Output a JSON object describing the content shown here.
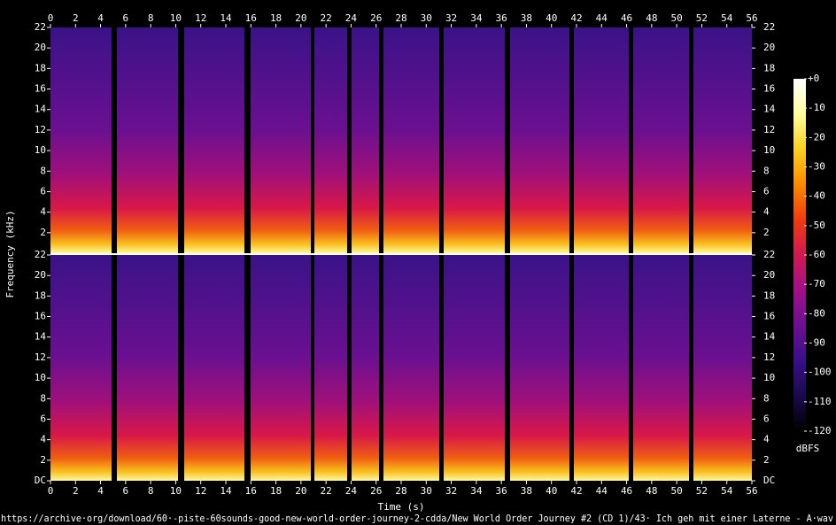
{
  "chart_data": {
    "type": "spectrogram",
    "x_label": "Time (s)",
    "y_label": "Frequency (kHz)",
    "xlim": [
      0,
      56
    ],
    "xticks": [
      0,
      2,
      4,
      6,
      8,
      10,
      12,
      14,
      16,
      18,
      20,
      22,
      24,
      26,
      28,
      30,
      32,
      34,
      36,
      38,
      40,
      42,
      44,
      46,
      48,
      50,
      52,
      54,
      56
    ],
    "channels": [
      {
        "ylim": [
          0,
          22
        ],
        "yticks": [
          2,
          4,
          6,
          8,
          10,
          12,
          14,
          16,
          18,
          20,
          22
        ]
      },
      {
        "ylim": [
          0,
          22
        ],
        "yticks": [
          {
            "value": 0,
            "label": "DC"
          },
          2,
          4,
          6,
          8,
          10,
          12,
          14,
          16,
          18,
          20,
          22
        ]
      }
    ],
    "colorbar": {
      "label": "dBFS",
      "lim": [
        -120,
        0
      ],
      "ticks": [
        {
          "value": 0,
          "label": "+0"
        },
        -10,
        -20,
        -30,
        -40,
        -50,
        -60,
        -70,
        -80,
        -90,
        -100,
        -110,
        -120
      ],
      "colors": [
        "#000000",
        "#1a0a4a",
        "#3a0f8a",
        "#6a1090",
        "#a0108a",
        "#d01a50",
        "#f03a10",
        "#f88a00",
        "#fcd020",
        "#ffffa0",
        "#ffffff"
      ]
    },
    "caption": "https://archive·org/download/60·-piste-60sounds-good-new-world-order-journey-2-cdda/New World Order Journey #2 (CD 1)/43· Ich geh mit einer Laterne - A·wav"
  }
}
